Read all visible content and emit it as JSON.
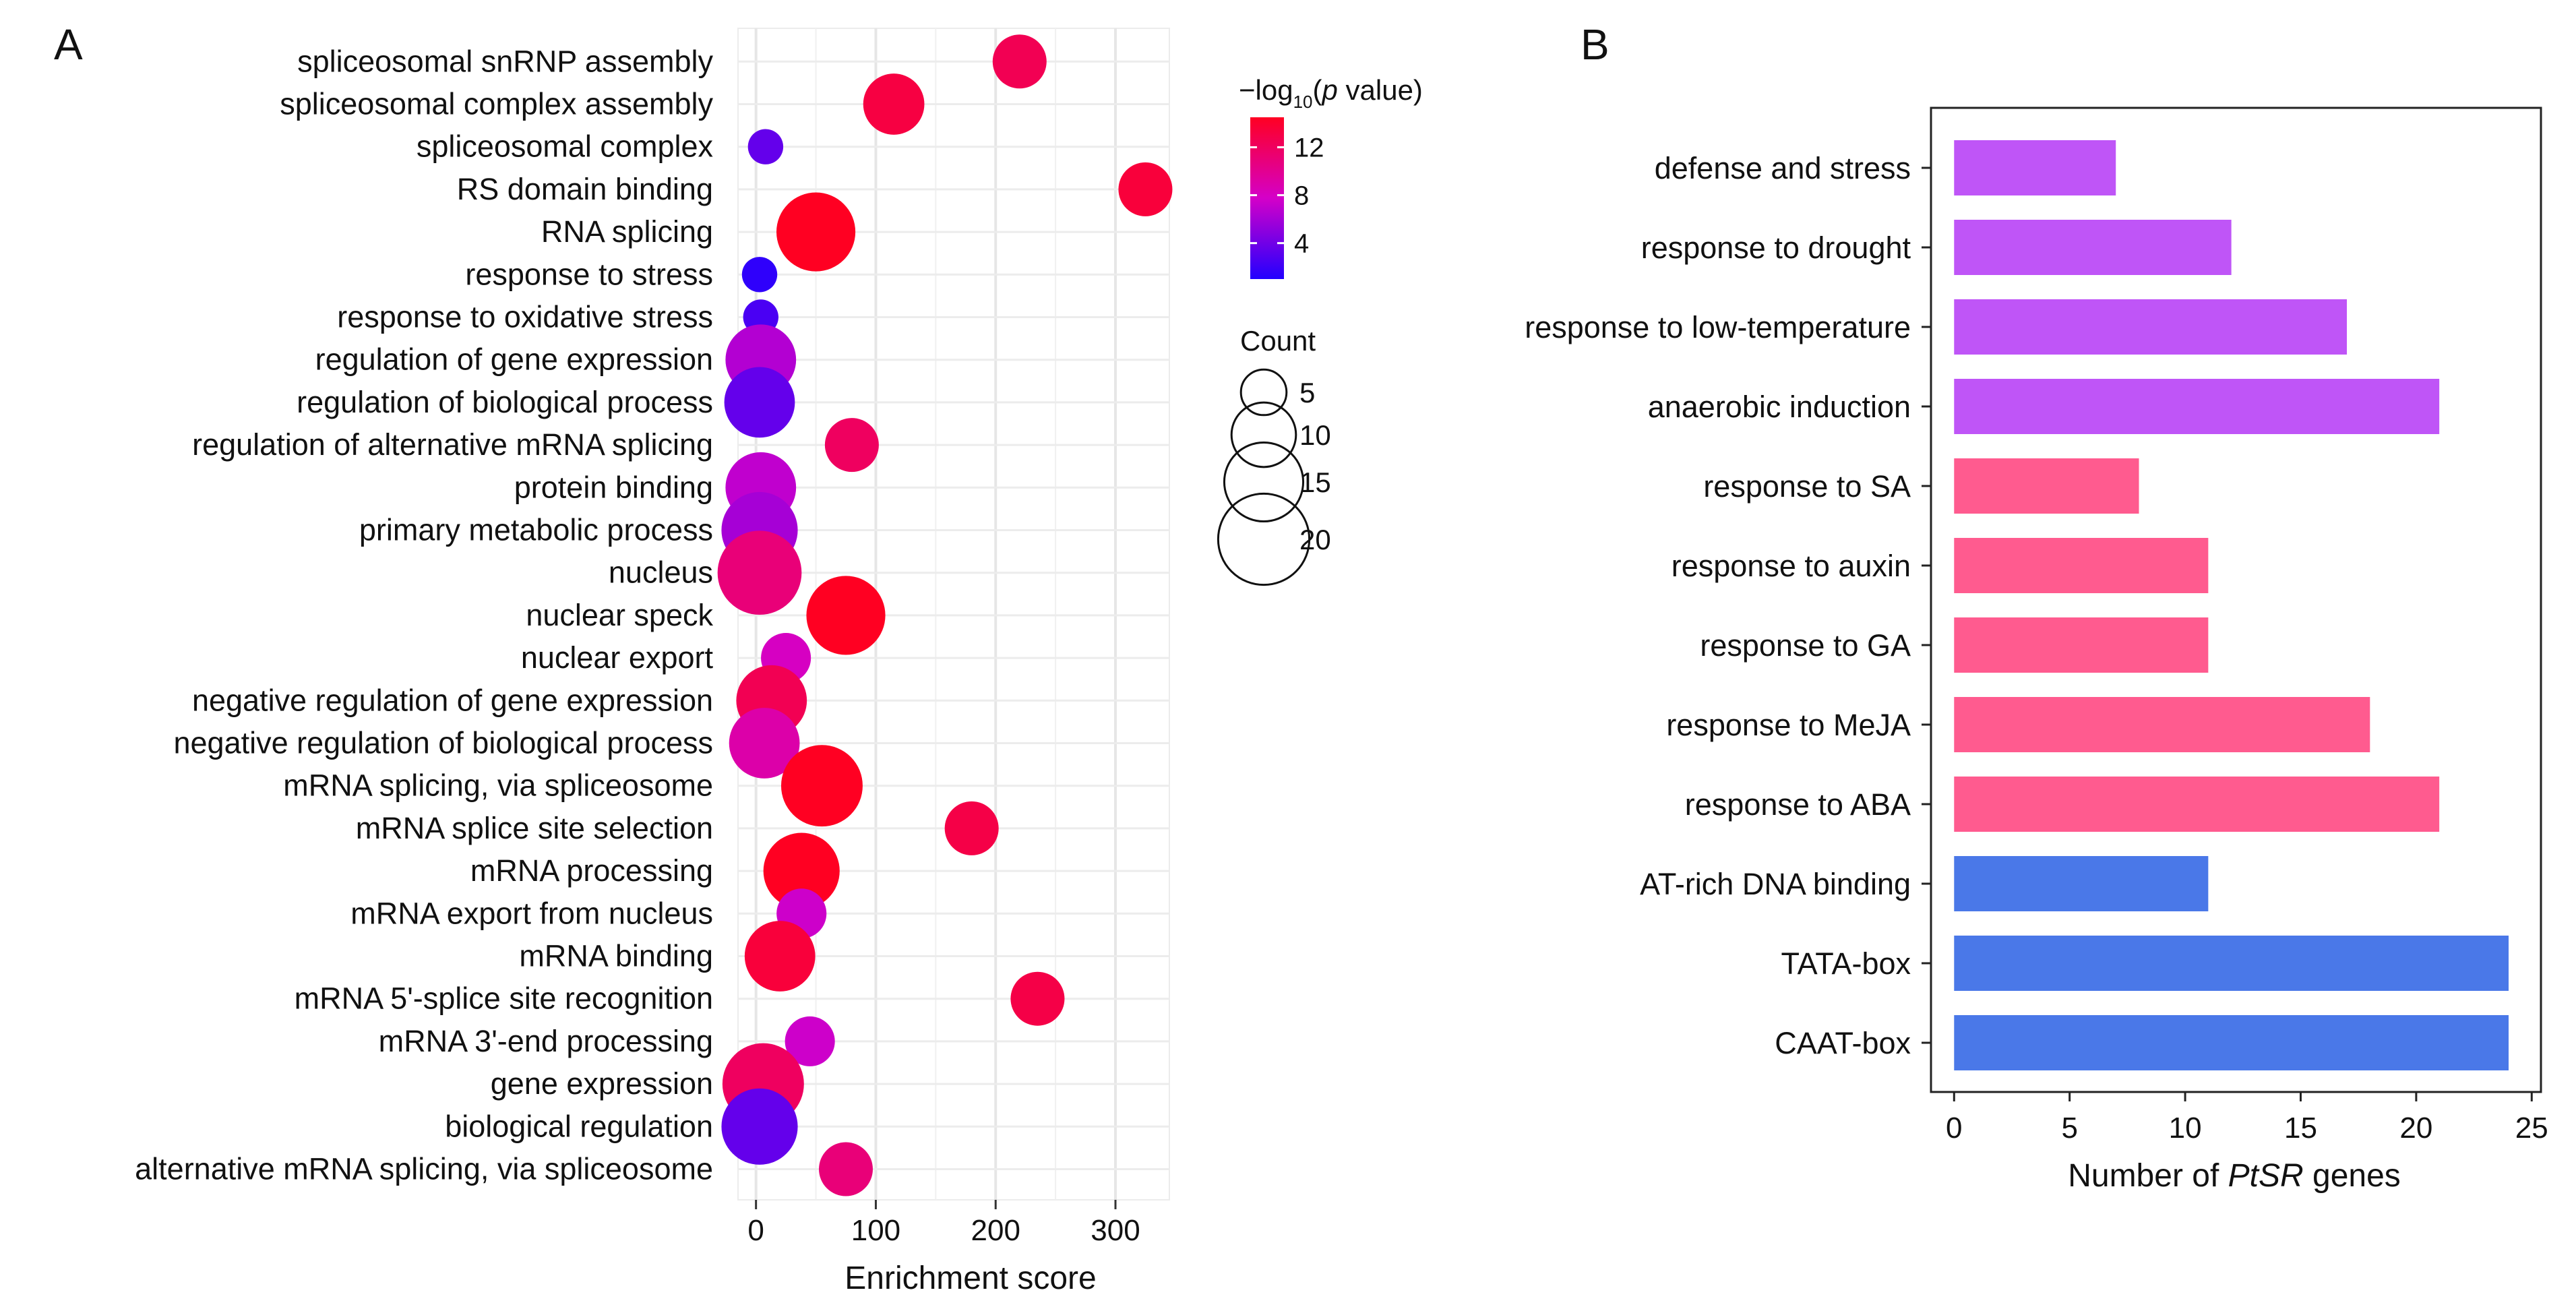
{
  "panel_a_label": "A",
  "panel_b_label": "B",
  "chart_data": [
    {
      "type": "scatter",
      "panel": "A",
      "xlabel": "Enrichment score",
      "ylabel": "",
      "xlim": [
        -15,
        345
      ],
      "xticks": [
        0,
        100,
        200,
        300
      ],
      "grid": true,
      "categories": [
        "spliceosomal snRNP assembly",
        "spliceosomal complex assembly",
        "spliceosomal complex",
        "RS domain binding",
        "RNA splicing",
        "response to stress",
        "response to oxidative stress",
        "regulation of gene expression",
        "regulation of biological process",
        "regulation of alternative mRNA splicing",
        "protein binding",
        "primary metabolic process",
        "nucleus",
        "nuclear speck",
        "nuclear export",
        "negative regulation of gene expression",
        "negative regulation of biological process",
        "mRNA splicing, via spliceosome",
        "mRNA splice site selection",
        "mRNA processing",
        "mRNA export from nucleus",
        "mRNA binding",
        "mRNA 5'-splice site recognition",
        "mRNA 3'-end processing",
        "gene expression",
        "biological regulation",
        "alternative mRNA splicing, via spliceosome"
      ],
      "enrichment_score": [
        220,
        115,
        8,
        325,
        50,
        3,
        4,
        4,
        3,
        80,
        4,
        3,
        3,
        75,
        25,
        13,
        7,
        55,
        180,
        38,
        38,
        20,
        235,
        45,
        6,
        3,
        75
      ],
      "count": [
        7,
        9,
        3,
        7,
        15,
        3,
        3,
        12,
        12,
        7,
        12,
        14,
        17,
        15,
        6,
        12,
        12,
        16,
        7,
        14,
        6,
        12,
        7,
        6,
        16,
        14,
        7
      ],
      "neg_log10_p": [
        12.5,
        13.2,
        3.5,
        13.5,
        14.5,
        1.5,
        2.5,
        6.5,
        3.5,
        12,
        7,
        6,
        11,
        14.5,
        8,
        12.5,
        9,
        14.5,
        13,
        14.5,
        7.5,
        13.5,
        13,
        7.5,
        12,
        3.5,
        11
      ],
      "color_legend": {
        "title_prefix": "−log",
        "title_sub": "10",
        "title_open": "(",
        "title_italic": "p",
        "title_suffix": " value)",
        "ticks": [
          4,
          8,
          12
        ],
        "range": [
          1,
          14.5
        ],
        "color_low": "#2200ff",
        "color_mid": "#d400c8",
        "color_high": "#ff0022"
      },
      "size_legend": {
        "title": "Count",
        "values": [
          5,
          10,
          15,
          20
        ]
      }
    },
    {
      "type": "bar",
      "panel": "B",
      "orientation": "horizontal",
      "categories": [
        "defense and stress",
        "response to drought",
        "response to low-temperature",
        "anaerobic induction",
        "response to SA",
        "response to auxin",
        "response to GA",
        "response to MeJA",
        "response to ABA",
        "AT-rich DNA binding",
        "TATA-box",
        "CAAT-box"
      ],
      "values": [
        7,
        12,
        17,
        21,
        8,
        11,
        11,
        18,
        21,
        11,
        24,
        24
      ],
      "groups": [
        "stress",
        "stress",
        "stress",
        "stress",
        "hormone",
        "hormone",
        "hormone",
        "hormone",
        "hormone",
        "core",
        "core",
        "core"
      ],
      "group_colors": {
        "stress": "#bf55f7",
        "hormone": "#ff5b8f",
        "core": "#4a78e8"
      },
      "xlim": [
        -1,
        25.4
      ],
      "xticks": [
        0,
        5,
        10,
        15,
        20,
        25
      ],
      "xlabel_prefix": "Number of ",
      "xlabel_italic": "PtSR",
      "xlabel_suffix": " genes",
      "grid": false
    }
  ]
}
